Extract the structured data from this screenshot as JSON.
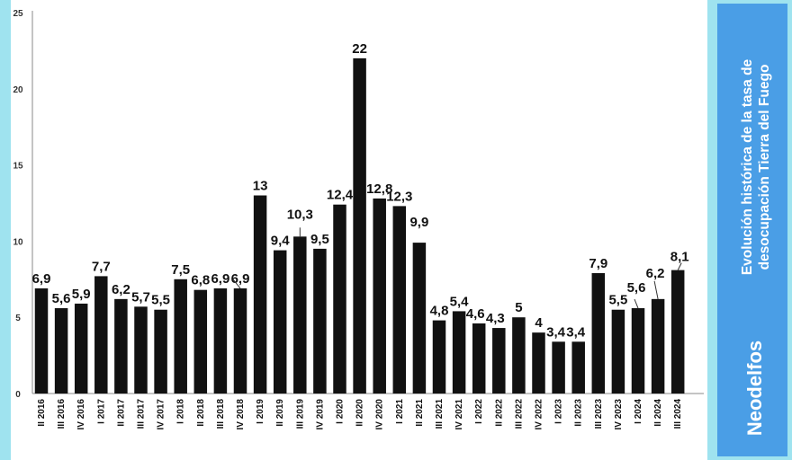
{
  "colors": {
    "bar": "#111111",
    "axis": "#888888",
    "frame": "#9fe3ef",
    "panel": "#4a9ee6"
  },
  "side_panel": {
    "title_line1": "Evolución histórica de la tasa de",
    "title_line2": "desocupación Tierra del Fuego",
    "brand": "Neodelfos"
  },
  "chart_data": {
    "type": "bar",
    "ylim": [
      0,
      25
    ],
    "ytick_values": [
      0,
      5,
      10,
      15,
      20,
      25
    ],
    "ytick_labels": [
      "0",
      "5",
      "10",
      "15",
      "20",
      "25"
    ],
    "categories": [
      "II 2016",
      "III 2016",
      "IV 2016",
      "I 2017",
      "II 2017",
      "III 2017",
      "IV 2017",
      "I 2018",
      "II 2018",
      "III 2018",
      "IV 2018",
      "I 2019",
      "II 2019",
      "III 2019",
      "IV 2019",
      "I 2020",
      "II 2020",
      "IV 2020",
      "I 2021",
      "II 2021",
      "III 2021",
      "IV 2021",
      "I 2022",
      "II 2022",
      "III 2022",
      "IV 2022",
      "I 2023",
      "II 2023",
      "III 2023",
      "IV 2023",
      "I 2024",
      "II 2024",
      "III 2024"
    ],
    "values": [
      6.9,
      5.6,
      5.9,
      7.7,
      6.2,
      5.7,
      5.5,
      7.5,
      6.8,
      6.9,
      6.9,
      13,
      9.4,
      10.3,
      9.5,
      12.4,
      22,
      12.8,
      12.3,
      9.9,
      4.8,
      5.4,
      4.6,
      4.3,
      5,
      4,
      3.4,
      3.4,
      7.9,
      5.5,
      5.6,
      6.2,
      8.1
    ],
    "data_labels": [
      "6,9",
      "5,6",
      "5,9",
      "7,7",
      "6,2",
      "5,7",
      "5,5",
      "7,5",
      "6,8",
      "6,9",
      "6,9",
      "13",
      "9,4",
      "10,3",
      "9,5",
      "12,4",
      "22",
      "12,8",
      "12,3",
      "9,9",
      "4,8",
      "5,4",
      "4,6",
      "4,3",
      "5",
      "4",
      "3,4",
      "3,4",
      "7,9",
      "5,5",
      "5,6",
      "6,2",
      "8,1"
    ],
    "grid": false,
    "legend": "none"
  }
}
